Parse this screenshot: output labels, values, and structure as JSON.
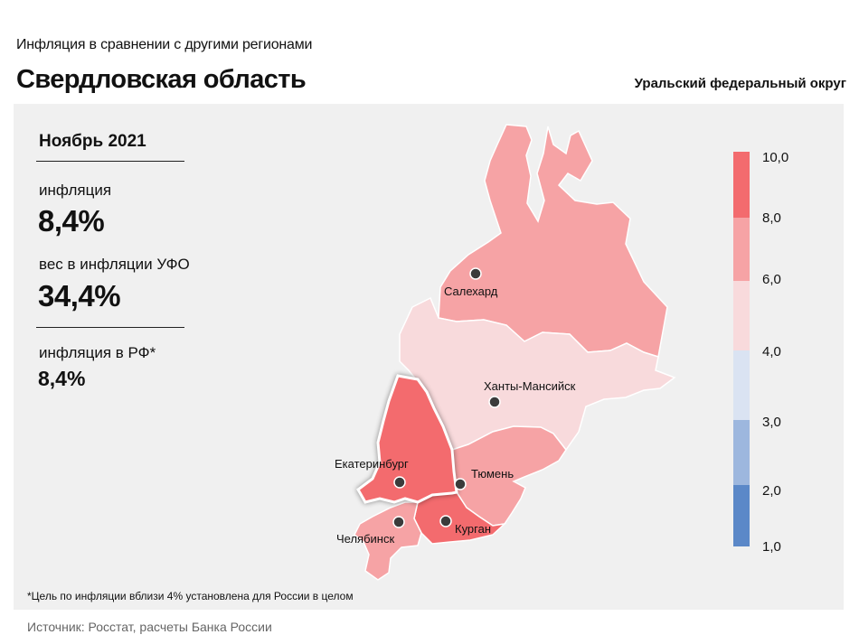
{
  "header": {
    "subtitle": "Инфляция  в сравнении  с другими  регионами",
    "title": "Свердловская область",
    "district": "Уральский федеральный округ"
  },
  "stats": {
    "period": "Ноябрь 2021",
    "inflation_label": "инфляция",
    "inflation_value": "8,4%",
    "weight_label": "вес в инфляции  УФО",
    "weight_value": "34,4%",
    "rf_label": "инфляция  в РФ*",
    "rf_value": "8,4%"
  },
  "footnote": "*Цель по инфляции вблизи 4% установлена для России в целом",
  "source": "Источник: Росстат, расчеты Банка России",
  "legend": {
    "ticks": [
      "10,0",
      "8,0",
      "6,0",
      "4,0",
      "3,0",
      "2,0",
      "1,0"
    ],
    "bins": [
      {
        "range": [
          8,
          10
        ],
        "color": "#f36b6e"
      },
      {
        "range": [
          6,
          8
        ],
        "color": "#f6a3a5"
      },
      {
        "range": [
          4,
          6
        ],
        "color": "#f8dadc"
      },
      {
        "range": [
          3,
          4
        ],
        "color": "#dae3f2"
      },
      {
        "range": [
          2,
          3
        ],
        "color": "#9db7de"
      },
      {
        "range": [
          1,
          2
        ],
        "color": "#5b88c8"
      }
    ]
  },
  "regions": [
    {
      "city": "Салехард",
      "color": "#f6a3a5"
    },
    {
      "city": "Ханты-Мансийск",
      "color": "#f8dadc"
    },
    {
      "city": "Екатеринбург",
      "color": "#f36b6e",
      "highlighted": true
    },
    {
      "city": "Тюмень",
      "color": "#f6a3a5"
    },
    {
      "city": "Курган",
      "color": "#f36b6e"
    },
    {
      "city": "Челябинск",
      "color": "#f6a3a5"
    }
  ]
}
